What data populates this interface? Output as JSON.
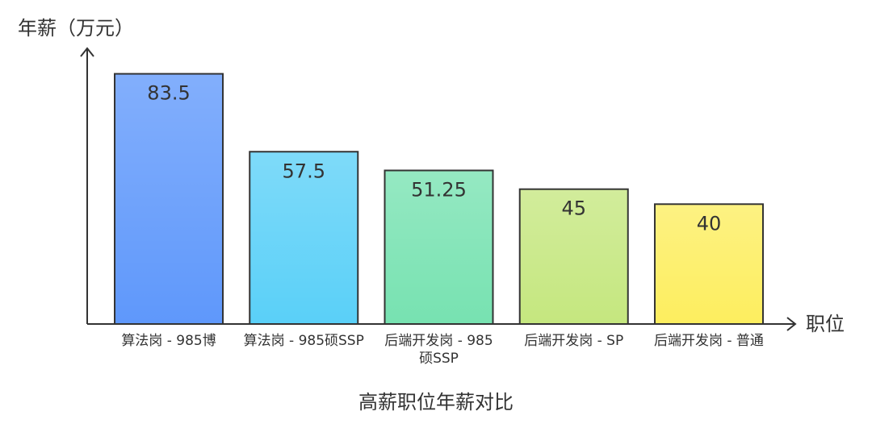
{
  "chart_data": {
    "type": "bar",
    "title": "高薪职位年薪对比",
    "y_label": "年薪（万元）",
    "x_label": "职位",
    "categories": [
      "算法岗 - 985博",
      "算法岗 - 985硕SSP",
      "后端开发岗 - 985硕SSP",
      "后端开发岗 - SP",
      "后端开发岗 - 普通"
    ],
    "values": [
      83.5,
      57.5,
      51.25,
      45,
      40
    ],
    "colors": [
      "#5f98fb",
      "#5ad0f8",
      "#77e2b1",
      "#c5e77f",
      "#fdee5f"
    ],
    "ylim": [
      0,
      92
    ]
  }
}
